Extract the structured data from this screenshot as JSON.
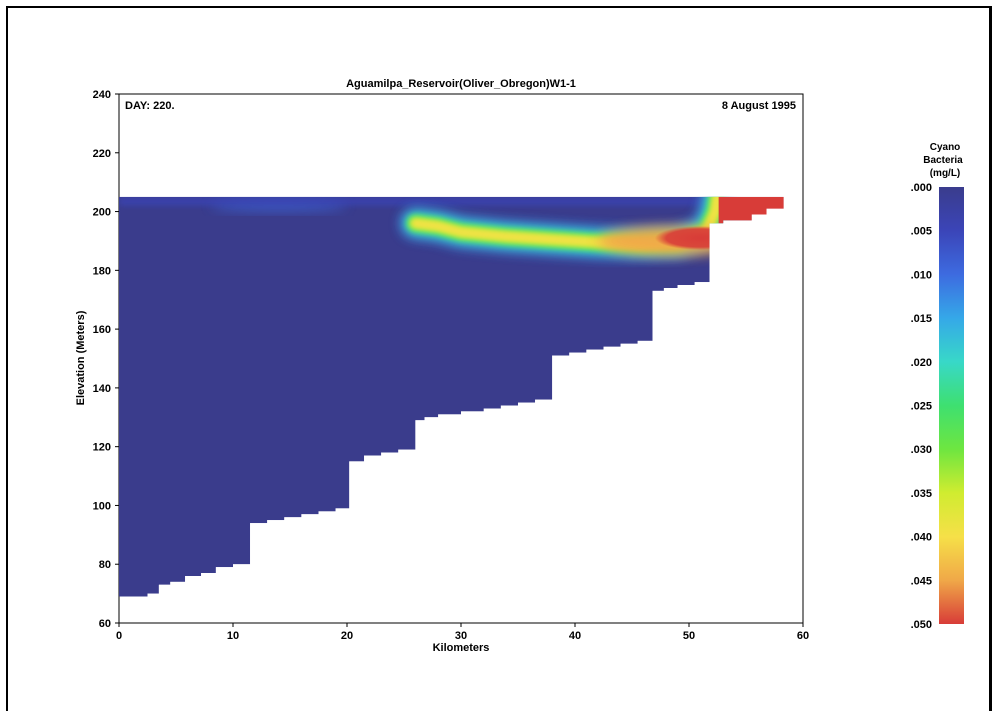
{
  "chart_data": {
    "type": "heatmap",
    "title": "Aguamilpa_Reservoir(Oliver_Obregon)W1-1",
    "annotation_left": "DAY: 220.",
    "annotation_right": "8 August 1995",
    "xlabel": "Kilometers",
    "ylabel": "Elevation (Meters)",
    "xlim": [
      0,
      60
    ],
    "ylim": [
      60,
      240
    ],
    "xticks": [
      "0",
      "10",
      "20",
      "30",
      "40",
      "50",
      "60"
    ],
    "yticks": [
      "60",
      "80",
      "100",
      "120",
      "140",
      "160",
      "180",
      "200",
      "220",
      "240"
    ],
    "surface_elevation": 205,
    "bottom_profile": [
      [
        0,
        64
      ],
      [
        2.5,
        69
      ],
      [
        3.5,
        70
      ],
      [
        4.5,
        73
      ],
      [
        5.8,
        74
      ],
      [
        7.2,
        76
      ],
      [
        8.5,
        77
      ],
      [
        10,
        79
      ],
      [
        11.5,
        80
      ],
      [
        13,
        94
      ],
      [
        14.5,
        95
      ],
      [
        16,
        96
      ],
      [
        17.5,
        97
      ],
      [
        19,
        98
      ],
      [
        20.2,
        99
      ],
      [
        21.5,
        115
      ],
      [
        23,
        117
      ],
      [
        24.5,
        118
      ],
      [
        26,
        119
      ],
      [
        26.8,
        129
      ],
      [
        28,
        130
      ],
      [
        30,
        131
      ],
      [
        32,
        132
      ],
      [
        33.5,
        133
      ],
      [
        35,
        134
      ],
      [
        36.5,
        135
      ],
      [
        38,
        136
      ],
      [
        39.5,
        151
      ],
      [
        41,
        152
      ],
      [
        42.5,
        153
      ],
      [
        44,
        154
      ],
      [
        45.5,
        155
      ],
      [
        46.8,
        156
      ],
      [
        47.8,
        173
      ],
      [
        49,
        174
      ],
      [
        50.5,
        175
      ],
      [
        51.8,
        176
      ],
      [
        53,
        196
      ],
      [
        54.2,
        197
      ],
      [
        55.5,
        197
      ],
      [
        56.8,
        199
      ],
      [
        58.3,
        201
      ]
    ],
    "bloom": {
      "variable": "Cyano Bacteria (mg/L)",
      "ridge": [
        [
          26,
          196
        ],
        [
          28,
          195
        ],
        [
          30,
          193
        ],
        [
          34,
          191.5
        ],
        [
          38,
          190.5
        ],
        [
          42,
          189.5
        ],
        [
          46,
          189
        ],
        [
          49,
          189.5
        ],
        [
          51.5,
          193
        ],
        [
          52.3,
          200
        ],
        [
          52.5,
          205
        ]
      ],
      "peak_max": 0.05,
      "near_surface_patch": {
        "x_range": [
          8,
          20
        ],
        "elevation": 202,
        "value": 0.004
      }
    },
    "colorbar": {
      "title_lines": [
        "Cyano",
        "Bacteria",
        "(mg/L)"
      ],
      "ticks": [
        ".000",
        ".005",
        ".010",
        ".015",
        ".020",
        ".025",
        ".030",
        ".035",
        ".040",
        ".045",
        ".050"
      ],
      "min": 0.0,
      "max": 0.05,
      "colors": [
        "#3a3c8c",
        "#3b45b8",
        "#3d6be0",
        "#35a8e8",
        "#38d8c8",
        "#3ee070",
        "#6ee640",
        "#d0ec30",
        "#f6e048",
        "#f0a848",
        "#d83c38"
      ]
    }
  }
}
